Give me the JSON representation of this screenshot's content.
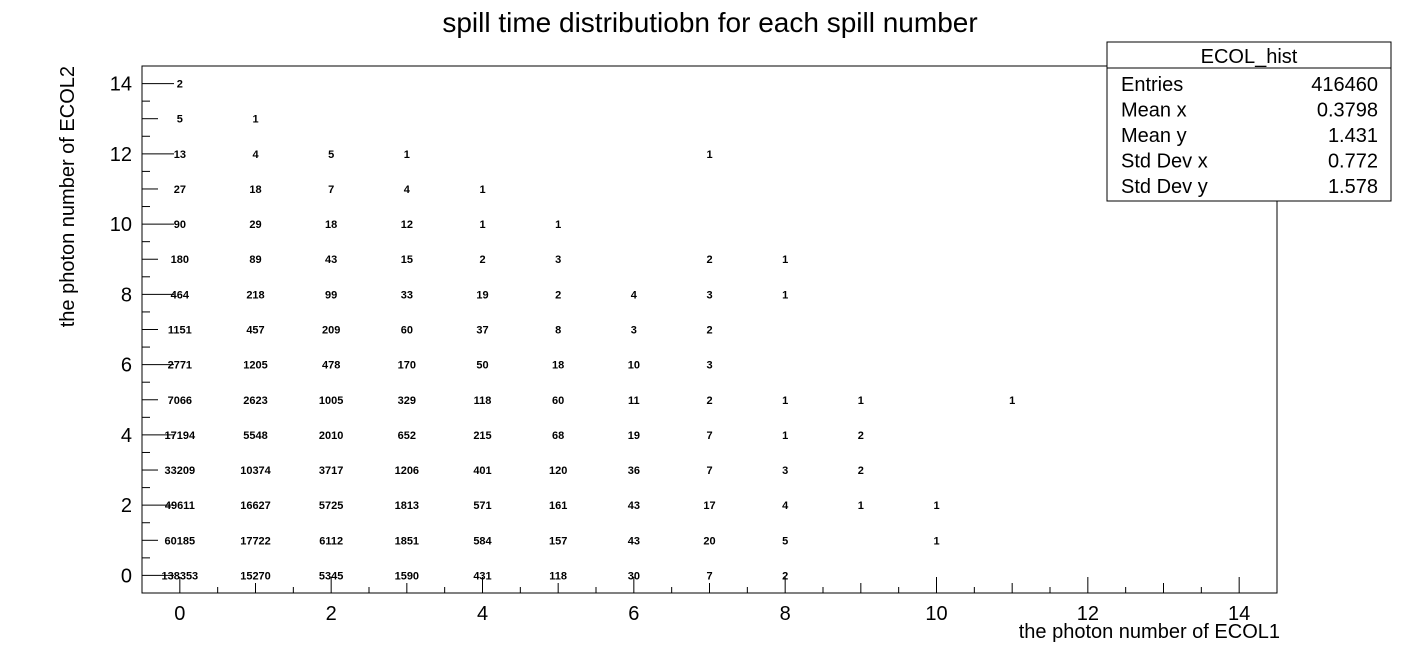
{
  "chart_data": {
    "type": "heatmap",
    "draw_option": "text",
    "title": "spill time distributiobn for each spill number",
    "xlabel": "the photon number of ECOL1",
    "ylabel": "the photon number of ECOL2",
    "xlim": [
      -0.5,
      14.5
    ],
    "ylim": [
      -0.5,
      14.5
    ],
    "x_ticks": [
      "0",
      "2",
      "4",
      "6",
      "8",
      "10",
      "12",
      "14"
    ],
    "y_ticks": [
      "0",
      "2",
      "4",
      "6",
      "8",
      "10",
      "12",
      "14"
    ],
    "cells": [
      {
        "x": 0,
        "y": 0,
        "v": "138353"
      },
      {
        "x": 1,
        "y": 0,
        "v": "15270"
      },
      {
        "x": 2,
        "y": 0,
        "v": "5345"
      },
      {
        "x": 3,
        "y": 0,
        "v": "1590"
      },
      {
        "x": 4,
        "y": 0,
        "v": "431"
      },
      {
        "x": 5,
        "y": 0,
        "v": "118"
      },
      {
        "x": 6,
        "y": 0,
        "v": "30"
      },
      {
        "x": 7,
        "y": 0,
        "v": "7"
      },
      {
        "x": 8,
        "y": 0,
        "v": "2"
      },
      {
        "x": 0,
        "y": 1,
        "v": "60185"
      },
      {
        "x": 1,
        "y": 1,
        "v": "17722"
      },
      {
        "x": 2,
        "y": 1,
        "v": "6112"
      },
      {
        "x": 3,
        "y": 1,
        "v": "1851"
      },
      {
        "x": 4,
        "y": 1,
        "v": "584"
      },
      {
        "x": 5,
        "y": 1,
        "v": "157"
      },
      {
        "x": 6,
        "y": 1,
        "v": "43"
      },
      {
        "x": 7,
        "y": 1,
        "v": "20"
      },
      {
        "x": 8,
        "y": 1,
        "v": "5"
      },
      {
        "x": 10,
        "y": 1,
        "v": "1"
      },
      {
        "x": 0,
        "y": 2,
        "v": "49611"
      },
      {
        "x": 1,
        "y": 2,
        "v": "16627"
      },
      {
        "x": 2,
        "y": 2,
        "v": "5725"
      },
      {
        "x": 3,
        "y": 2,
        "v": "1813"
      },
      {
        "x": 4,
        "y": 2,
        "v": "571"
      },
      {
        "x": 5,
        "y": 2,
        "v": "161"
      },
      {
        "x": 6,
        "y": 2,
        "v": "43"
      },
      {
        "x": 7,
        "y": 2,
        "v": "17"
      },
      {
        "x": 8,
        "y": 2,
        "v": "4"
      },
      {
        "x": 9,
        "y": 2,
        "v": "1"
      },
      {
        "x": 10,
        "y": 2,
        "v": "1"
      },
      {
        "x": 0,
        "y": 3,
        "v": "33209"
      },
      {
        "x": 1,
        "y": 3,
        "v": "10374"
      },
      {
        "x": 2,
        "y": 3,
        "v": "3717"
      },
      {
        "x": 3,
        "y": 3,
        "v": "1206"
      },
      {
        "x": 4,
        "y": 3,
        "v": "401"
      },
      {
        "x": 5,
        "y": 3,
        "v": "120"
      },
      {
        "x": 6,
        "y": 3,
        "v": "36"
      },
      {
        "x": 7,
        "y": 3,
        "v": "7"
      },
      {
        "x": 8,
        "y": 3,
        "v": "3"
      },
      {
        "x": 9,
        "y": 3,
        "v": "2"
      },
      {
        "x": 0,
        "y": 4,
        "v": "17194"
      },
      {
        "x": 1,
        "y": 4,
        "v": "5548"
      },
      {
        "x": 2,
        "y": 4,
        "v": "2010"
      },
      {
        "x": 3,
        "y": 4,
        "v": "652"
      },
      {
        "x": 4,
        "y": 4,
        "v": "215"
      },
      {
        "x": 5,
        "y": 4,
        "v": "68"
      },
      {
        "x": 6,
        "y": 4,
        "v": "19"
      },
      {
        "x": 7,
        "y": 4,
        "v": "7"
      },
      {
        "x": 8,
        "y": 4,
        "v": "1"
      },
      {
        "x": 9,
        "y": 4,
        "v": "2"
      },
      {
        "x": 0,
        "y": 5,
        "v": "7066"
      },
      {
        "x": 1,
        "y": 5,
        "v": "2623"
      },
      {
        "x": 2,
        "y": 5,
        "v": "1005"
      },
      {
        "x": 3,
        "y": 5,
        "v": "329"
      },
      {
        "x": 4,
        "y": 5,
        "v": "118"
      },
      {
        "x": 5,
        "y": 5,
        "v": "60"
      },
      {
        "x": 6,
        "y": 5,
        "v": "11"
      },
      {
        "x": 7,
        "y": 5,
        "v": "2"
      },
      {
        "x": 8,
        "y": 5,
        "v": "1"
      },
      {
        "x": 9,
        "y": 5,
        "v": "1"
      },
      {
        "x": 11,
        "y": 5,
        "v": "1"
      },
      {
        "x": 0,
        "y": 6,
        "v": "2771"
      },
      {
        "x": 1,
        "y": 6,
        "v": "1205"
      },
      {
        "x": 2,
        "y": 6,
        "v": "478"
      },
      {
        "x": 3,
        "y": 6,
        "v": "170"
      },
      {
        "x": 4,
        "y": 6,
        "v": "50"
      },
      {
        "x": 5,
        "y": 6,
        "v": "18"
      },
      {
        "x": 6,
        "y": 6,
        "v": "10"
      },
      {
        "x": 7,
        "y": 6,
        "v": "3"
      },
      {
        "x": 0,
        "y": 7,
        "v": "1151"
      },
      {
        "x": 1,
        "y": 7,
        "v": "457"
      },
      {
        "x": 2,
        "y": 7,
        "v": "209"
      },
      {
        "x": 3,
        "y": 7,
        "v": "60"
      },
      {
        "x": 4,
        "y": 7,
        "v": "37"
      },
      {
        "x": 5,
        "y": 7,
        "v": "8"
      },
      {
        "x": 6,
        "y": 7,
        "v": "3"
      },
      {
        "x": 7,
        "y": 7,
        "v": "2"
      },
      {
        "x": 0,
        "y": 8,
        "v": "464"
      },
      {
        "x": 1,
        "y": 8,
        "v": "218"
      },
      {
        "x": 2,
        "y": 8,
        "v": "99"
      },
      {
        "x": 3,
        "y": 8,
        "v": "33"
      },
      {
        "x": 4,
        "y": 8,
        "v": "19"
      },
      {
        "x": 5,
        "y": 8,
        "v": "2"
      },
      {
        "x": 6,
        "y": 8,
        "v": "4"
      },
      {
        "x": 7,
        "y": 8,
        "v": "3"
      },
      {
        "x": 8,
        "y": 8,
        "v": "1"
      },
      {
        "x": 0,
        "y": 9,
        "v": "180"
      },
      {
        "x": 1,
        "y": 9,
        "v": "89"
      },
      {
        "x": 2,
        "y": 9,
        "v": "43"
      },
      {
        "x": 3,
        "y": 9,
        "v": "15"
      },
      {
        "x": 4,
        "y": 9,
        "v": "2"
      },
      {
        "x": 5,
        "y": 9,
        "v": "3"
      },
      {
        "x": 7,
        "y": 9,
        "v": "2"
      },
      {
        "x": 8,
        "y": 9,
        "v": "1"
      },
      {
        "x": 0,
        "y": 10,
        "v": "90"
      },
      {
        "x": 1,
        "y": 10,
        "v": "29"
      },
      {
        "x": 2,
        "y": 10,
        "v": "18"
      },
      {
        "x": 3,
        "y": 10,
        "v": "12"
      },
      {
        "x": 4,
        "y": 10,
        "v": "1"
      },
      {
        "x": 5,
        "y": 10,
        "v": "1"
      },
      {
        "x": 0,
        "y": 11,
        "v": "27"
      },
      {
        "x": 1,
        "y": 11,
        "v": "18"
      },
      {
        "x": 2,
        "y": 11,
        "v": "7"
      },
      {
        "x": 3,
        "y": 11,
        "v": "4"
      },
      {
        "x": 4,
        "y": 11,
        "v": "1"
      },
      {
        "x": 0,
        "y": 12,
        "v": "13"
      },
      {
        "x": 1,
        "y": 12,
        "v": "4"
      },
      {
        "x": 2,
        "y": 12,
        "v": "5"
      },
      {
        "x": 3,
        "y": 12,
        "v": "1"
      },
      {
        "x": 7,
        "y": 12,
        "v": "1"
      },
      {
        "x": 0,
        "y": 13,
        "v": "5"
      },
      {
        "x": 1,
        "y": 13,
        "v": "1"
      },
      {
        "x": 0,
        "y": 14,
        "v": "2"
      }
    ],
    "stats_box": {
      "title": "ECOL_hist",
      "rows": [
        {
          "label": "Entries",
          "value": "416460"
        },
        {
          "label": "Mean x",
          "value": "0.3798"
        },
        {
          "label": "Mean y",
          "value": "1.431"
        },
        {
          "label": "Std Dev x",
          "value": "0.772"
        },
        {
          "label": "Std Dev y",
          "value": "1.578"
        }
      ]
    }
  }
}
